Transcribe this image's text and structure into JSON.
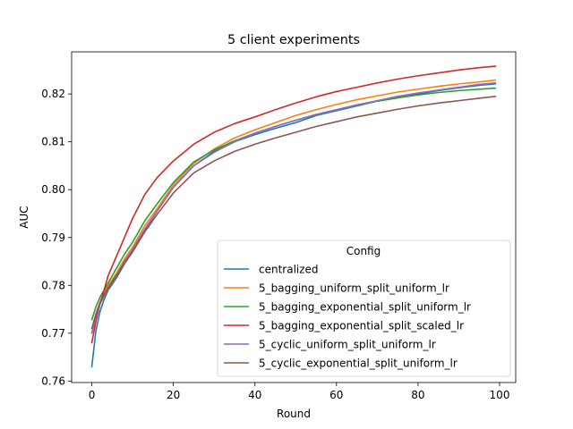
{
  "chart_data": {
    "type": "line",
    "title": "5 client experiments",
    "xlabel": "Round",
    "ylabel": "AUC",
    "xlim": [
      -4.95,
      103.95
    ],
    "ylim": [
      0.7597,
      0.8288
    ],
    "xticks": [
      0,
      20,
      40,
      60,
      80,
      100
    ],
    "yticks": [
      0.76,
      0.77,
      0.78,
      0.79,
      0.8,
      0.81,
      0.82
    ],
    "ytick_labels": [
      "0.76",
      "0.77",
      "0.78",
      "0.79",
      "0.80",
      "0.81",
      "0.82"
    ],
    "grid": false,
    "legend": {
      "title": "Config",
      "placement": "lower-right"
    },
    "series": [
      {
        "name": "centralized",
        "color": "#1f77b4",
        "x": [
          0,
          1,
          2,
          3,
          4,
          6,
          8,
          10,
          13,
          16,
          20,
          25,
          30,
          35,
          40,
          45,
          50,
          55,
          60,
          65,
          70,
          75,
          80,
          85,
          90,
          95,
          99
        ],
        "y": [
          0.763,
          0.7705,
          0.7745,
          0.777,
          0.779,
          0.7815,
          0.7845,
          0.787,
          0.7915,
          0.7955,
          0.8005,
          0.805,
          0.808,
          0.81,
          0.8115,
          0.8128,
          0.814,
          0.8155,
          0.8165,
          0.8175,
          0.8185,
          0.8192,
          0.82,
          0.8207,
          0.8213,
          0.8218,
          0.8221
        ]
      },
      {
        "name": "5_bagging_uniform_split_uniform_lr",
        "color": "#ff7f0e",
        "x": [
          0,
          1,
          2,
          3,
          4,
          6,
          8,
          10,
          13,
          16,
          20,
          25,
          30,
          35,
          40,
          45,
          50,
          55,
          60,
          65,
          70,
          75,
          80,
          85,
          90,
          95,
          99
        ],
        "y": [
          0.77,
          0.774,
          0.7765,
          0.7785,
          0.78,
          0.7825,
          0.7855,
          0.788,
          0.7925,
          0.796,
          0.801,
          0.8055,
          0.8085,
          0.8108,
          0.8125,
          0.814,
          0.8155,
          0.8167,
          0.8178,
          0.8188,
          0.8196,
          0.8204,
          0.821,
          0.8216,
          0.8221,
          0.8225,
          0.8229
        ]
      },
      {
        "name": "5_bagging_exponential_split_uniform_lr",
        "color": "#2ca02c",
        "x": [
          0,
          1,
          2,
          3,
          4,
          6,
          8,
          10,
          13,
          16,
          20,
          25,
          30,
          35,
          40,
          45,
          50,
          55,
          60,
          65,
          70,
          75,
          80,
          85,
          90,
          95,
          99
        ],
        "y": [
          0.7728,
          0.7755,
          0.7775,
          0.779,
          0.7805,
          0.7835,
          0.7865,
          0.789,
          0.7935,
          0.797,
          0.8015,
          0.8058,
          0.8083,
          0.8102,
          0.8118,
          0.8132,
          0.8145,
          0.8157,
          0.8167,
          0.8177,
          0.8185,
          0.8192,
          0.8198,
          0.8203,
          0.8207,
          0.821,
          0.8212
        ]
      },
      {
        "name": "5_bagging_exponential_split_scaled_lr",
        "color": "#d62728",
        "x": [
          0,
          1,
          2,
          3,
          4,
          6,
          8,
          10,
          13,
          16,
          20,
          25,
          30,
          35,
          40,
          45,
          50,
          55,
          60,
          65,
          70,
          75,
          80,
          85,
          90,
          95,
          99
        ],
        "y": [
          0.768,
          0.7725,
          0.776,
          0.779,
          0.782,
          0.786,
          0.79,
          0.794,
          0.799,
          0.8025,
          0.806,
          0.8095,
          0.812,
          0.8138,
          0.8152,
          0.8167,
          0.8181,
          0.8194,
          0.8205,
          0.8214,
          0.8223,
          0.8231,
          0.8238,
          0.8244,
          0.825,
          0.8255,
          0.8258
        ]
      },
      {
        "name": "5_cyclic_uniform_split_uniform_lr",
        "color": "#9467bd",
        "x": [
          0,
          1,
          2,
          3,
          4,
          6,
          8,
          10,
          13,
          16,
          20,
          25,
          30,
          35,
          40,
          45,
          50,
          55,
          60,
          65,
          70,
          75,
          80,
          85,
          90,
          95,
          99
        ],
        "y": [
          0.77,
          0.7735,
          0.776,
          0.7778,
          0.7795,
          0.782,
          0.785,
          0.7875,
          0.7918,
          0.7955,
          0.8005,
          0.805,
          0.8078,
          0.81,
          0.8118,
          0.8132,
          0.8145,
          0.8157,
          0.8167,
          0.8177,
          0.8186,
          0.8195,
          0.8202,
          0.8208,
          0.8214,
          0.822,
          0.8223
        ]
      },
      {
        "name": "5_cyclic_exponential_split_uniform_lr",
        "color": "#8c564b",
        "x": [
          0,
          1,
          2,
          3,
          4,
          6,
          8,
          10,
          13,
          16,
          20,
          25,
          30,
          35,
          40,
          45,
          50,
          55,
          60,
          65,
          70,
          75,
          80,
          85,
          90,
          95,
          99
        ],
        "y": [
          0.771,
          0.774,
          0.7763,
          0.778,
          0.7795,
          0.782,
          0.7847,
          0.787,
          0.7912,
          0.7948,
          0.7993,
          0.8035,
          0.806,
          0.808,
          0.8095,
          0.8108,
          0.812,
          0.8132,
          0.8142,
          0.8152,
          0.816,
          0.8168,
          0.8175,
          0.8181,
          0.8186,
          0.8191,
          0.8195
        ]
      }
    ]
  }
}
